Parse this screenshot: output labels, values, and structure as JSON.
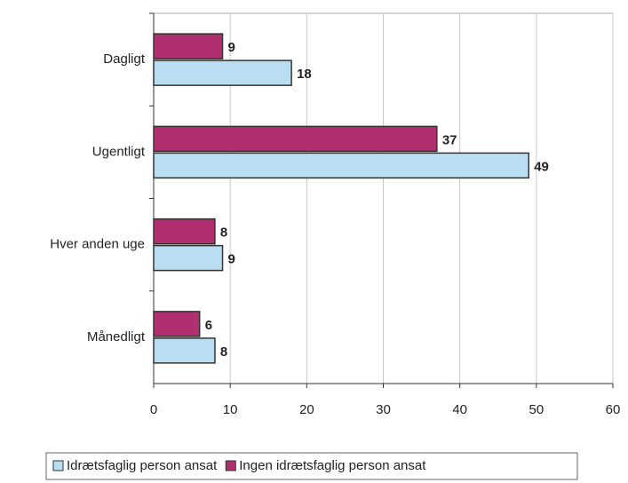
{
  "chart_data": {
    "type": "bar",
    "orientation": "horizontal",
    "categories": [
      "Dagligt",
      "Ugentligt",
      "Hver anden uge",
      "Månedligt"
    ],
    "series": [
      {
        "name": "Idrætsfaglig person ansat",
        "color": "#b9def2",
        "values": [
          18,
          49,
          9,
          8
        ]
      },
      {
        "name": "Ingen idrætsfaglig person ansat",
        "color": "#b0306f",
        "values": [
          9,
          37,
          8,
          6
        ]
      }
    ],
    "xlim": [
      0,
      60
    ],
    "xticks": [
      0,
      10,
      20,
      30,
      40,
      50,
      60
    ],
    "grid": true,
    "legend": "bottom"
  }
}
